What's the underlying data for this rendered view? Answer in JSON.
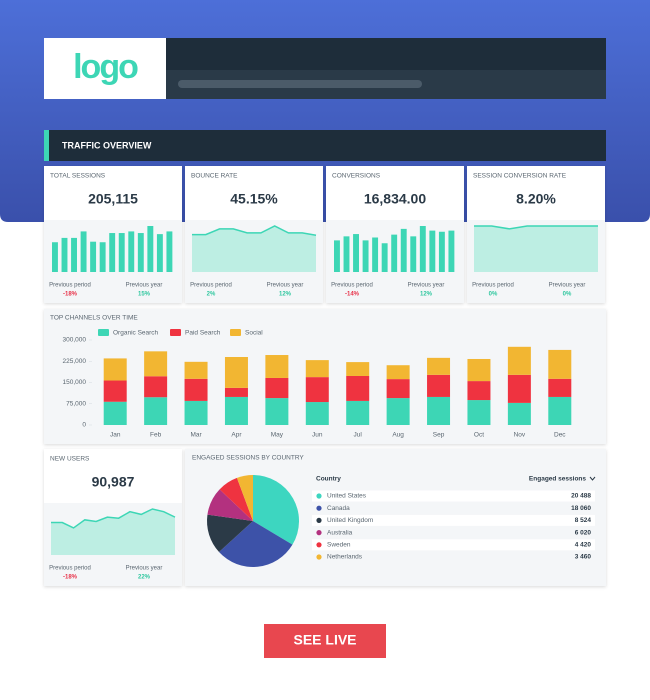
{
  "logo": "logo",
  "section_title": "TRAFFIC OVERVIEW",
  "chart_data": [
    {
      "type": "bar",
      "title": "TOTAL SESSIONS",
      "value_label": "205,115",
      "color": "#3dd6b5",
      "values": [
        55,
        63,
        63,
        75,
        56,
        55,
        72,
        72,
        75,
        72,
        85,
        70,
        75
      ],
      "comparisons": [
        {
          "label": "Previous period",
          "change": "-18%"
        },
        {
          "label": "Previous year",
          "change": "15%"
        }
      ]
    },
    {
      "type": "area",
      "title": "BOUNCE RATE",
      "value_label": "45.15%",
      "color": "#3dd6b5",
      "values": [
        65,
        65,
        75,
        75,
        68,
        68,
        80,
        68,
        68,
        64
      ],
      "comparisons": [
        {
          "label": "Previous period",
          "change": "2%"
        },
        {
          "label": "Previous year",
          "change": "12%"
        }
      ]
    },
    {
      "type": "bar",
      "title": "CONVERSIONS",
      "value_label": "16,834.00",
      "color": "#3dd6b5",
      "values": [
        55,
        62,
        66,
        55,
        60,
        50,
        65,
        75,
        62,
        80,
        72,
        70,
        72
      ],
      "comparisons": [
        {
          "label": "Previous period",
          "change": "-14%"
        },
        {
          "label": "Previous year",
          "change": "12%"
        }
      ]
    },
    {
      "type": "area",
      "title": "SESSION CONVERSION RATE",
      "value_label": "8.20%",
      "color": "#3dd6b5",
      "values": [
        80,
        80,
        75,
        80,
        80,
        80,
        80,
        80
      ],
      "comparisons": [
        {
          "label": "Previous period",
          "change": "0%"
        },
        {
          "label": "Previous year",
          "change": "0%"
        }
      ]
    },
    {
      "type": "stacked_bar",
      "title": "TOP CHANNELS OVER TIME",
      "categories": [
        "Jan",
        "Feb",
        "Mar",
        "Apr",
        "May",
        "Jun",
        "Jul",
        "Aug",
        "Sep",
        "Oct",
        "Nov",
        "Dec"
      ],
      "series": [
        {
          "name": "Organic Search",
          "color": "#3dd6b5",
          "values": [
            82000,
            98000,
            85000,
            99000,
            95000,
            81000,
            85000,
            95000,
            99000,
            88000,
            78000,
            99000
          ]
        },
        {
          "name": "Paid Search",
          "color": "#ef3340",
          "values": [
            75000,
            74000,
            78000,
            32000,
            71000,
            88000,
            88000,
            67000,
            78000,
            67000,
            99000,
            64000
          ]
        },
        {
          "name": "Social",
          "color": "#f2b632",
          "values": [
            78000,
            88000,
            60000,
            109000,
            81000,
            60000,
            49000,
            49000,
            60000,
            78000,
            99000,
            102000
          ]
        }
      ],
      "ylim": [
        0,
        300000
      ],
      "yticks": [
        0,
        {
          "value": 75000,
          "label": "75,000"
        },
        {
          "value": 150000,
          "label": "150,000"
        },
        {
          "value": 225000,
          "label": "225,000"
        },
        {
          "value": 300000,
          "label": "300,000"
        }
      ]
    },
    {
      "type": "area",
      "title": "NEW USERS",
      "value_label": "90,987",
      "color": "#3dd6b5",
      "values": [
        60,
        60,
        50,
        65,
        62,
        70,
        68,
        80,
        75,
        85,
        80,
        70
      ],
      "comparisons": [
        {
          "label": "Previous period",
          "change": "-18%"
        },
        {
          "label": "Previous year",
          "change": "22%"
        }
      ]
    },
    {
      "type": "pie",
      "title": "ENGAGED SESSIONS BY COUNTRY",
      "column_headers": [
        "Country",
        "Engaged sessions"
      ],
      "categories": [
        "United States",
        "Canada",
        "United Kingdom",
        "Australia",
        "Sweden",
        "Netherlands"
      ],
      "values": [
        20488,
        18060,
        8524,
        6020,
        4420,
        3460
      ],
      "value_labels": [
        "20 488",
        "18 060",
        "8 524",
        "6 020",
        "4 420",
        "3 460"
      ],
      "colors": [
        "#3dd6c0",
        "#3d52a8",
        "#2b3a47",
        "#b3317f",
        "#ef3340",
        "#f2b632"
      ]
    }
  ],
  "button": "SEE LIVE"
}
